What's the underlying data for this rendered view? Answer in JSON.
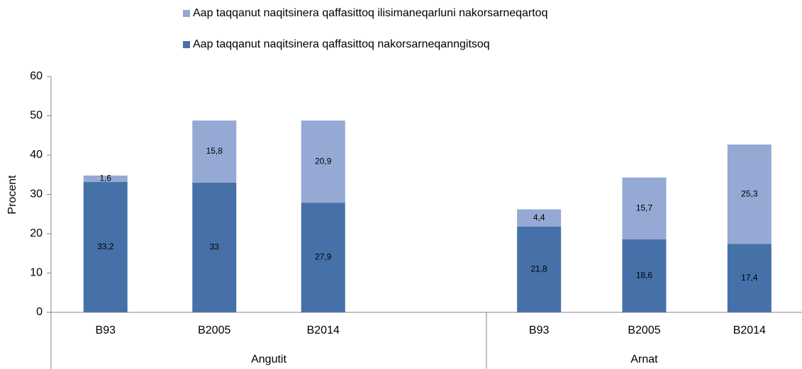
{
  "chart_data": {
    "type": "stacked_bar",
    "categories": [
      "B93",
      "B2005",
      "B2014",
      "B93",
      "B2005",
      "B2014"
    ],
    "groups": [
      "Angutit",
      "Arnat"
    ],
    "y_label": "Procent",
    "ylim": [
      0,
      60
    ],
    "yticks": [
      0,
      10,
      20,
      30,
      40,
      50,
      60
    ],
    "series": [
      {
        "name": "Aap taqqanut naqitsinera qaffasittoq ilisimaneqarluni nakorsarneqartoq",
        "color": "#95a9d4",
        "values": [
          1.6,
          15.8,
          20.9,
          4.4,
          15.7,
          25.3
        ],
        "value_labels": [
          "1,6",
          "15,8",
          "20,9",
          "4,4",
          "15,7",
          "25,3"
        ]
      },
      {
        "name": "Aap taqqanut naqitsinera qaffasittoq nakorsarneqanngitsoq",
        "color": "#4571a8",
        "values": [
          33.2,
          33,
          27.9,
          21.8,
          18.6,
          17.4
        ],
        "value_labels": [
          "33,2",
          "33",
          "27,9",
          "21,8",
          "18,6",
          "17,4"
        ]
      }
    ]
  }
}
